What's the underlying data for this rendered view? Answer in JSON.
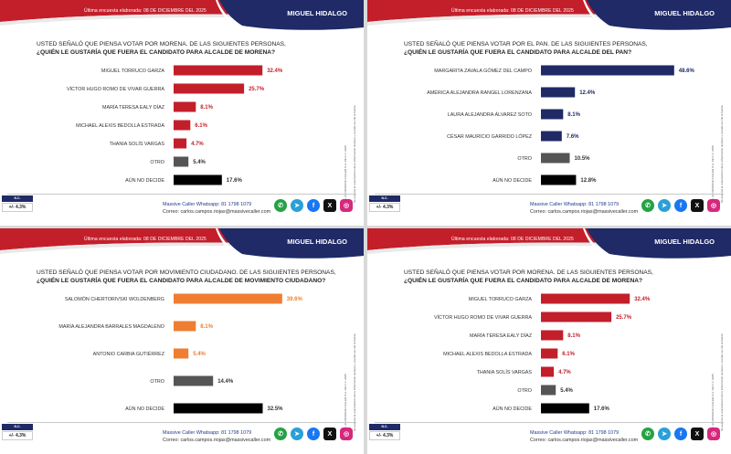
{
  "header": {
    "survey_date": "Última encuesta elaborada: 08 DE DICIEMBRE DEL 2025",
    "pollster": "MIGUEL HIDALGO",
    "brand_color": "#c21f2b",
    "navy_color": "#1f2a66"
  },
  "footer": {
    "box_top": "N.C.",
    "margin": "+/- 4.3%",
    "whatsapp": "Massive Caller Whatsapp: 81 1798 1079",
    "email": "Correo: carlos.campos.riojas@massivecaller.com",
    "social_icons": [
      "whatsapp-icon",
      "telegram-icon",
      "facebook-icon",
      "x-icon",
      "instagram-icon"
    ]
  },
  "side_notes": {
    "a": "S.A. (C) MASSIVE CALLER S.A. DE C.V. 2025",
    "b": "Se autoriza la reproducción de la información siempre y cuando se cite la fuente."
  },
  "panels": [
    {
      "question_line1": "USTED SEÑALÓ QUE PIENSA VOTAR POR MORENA. DE LAS SIGUIENTES PERSONAS,",
      "question_line2": "¿QUIÉN LE GUSTARÍA QUE FUERA EL CANDIDATO PARA ALCALDE DE MORENA?"
    },
    {
      "question_line1": "USTED SEÑALÓ QUE PIENSA VOTAR POR EL PAN. DE LAS SIGUIENTES PERSONAS,",
      "question_line2": "¿QUIÉN LE GUSTARÍA QUE FUERA EL CANDIDATO PARA ALCALDE DEL PAN?"
    },
    {
      "question_line1": "USTED SEÑALÓ QUE PIENSA VOTAR POR MOVIMIENTO CIUDADANO. DE LAS SIGUIENTES PERSONAS,",
      "question_line2": "¿QUIÉN LE GUSTARÍA QUE FUERA EL CANDIDATO PARA ALCALDE DE MOVIMIENTO CIUDADANO?"
    },
    {
      "question_line1": "USTED SEÑALÓ QUE PIENSA VOTAR POR MORENA. DE LAS SIGUIENTES PERSONAS,",
      "question_line2": "¿QUIÉN LE GUSTARÍA QUE FUERA EL CANDIDATO PARA ALCALDE DE MORENA?"
    }
  ],
  "chart_data": [
    {
      "type": "bar",
      "orientation": "horizontal",
      "categories": [
        "MIGUEL TORRUCO GARZA",
        "VÍCTOR HUGO ROMO DE VIVAR GUERRA",
        "MARÍA TERESA EALY DÍAZ",
        "MICHAEL ALEXIS BEDOLLA ESTRADA",
        "THANIA SOLÍS VARGAS",
        "OTRO",
        "AÚN NO DECIDE"
      ],
      "values": [
        32.4,
        25.7,
        8.1,
        6.1,
        4.7,
        5.4,
        17.6
      ],
      "labels": [
        "32.4%",
        "25.7%",
        "8.1%",
        "6.1%",
        "4.7%",
        "5.4%",
        "17.6%"
      ],
      "colors": [
        "#c21f2b",
        "#c21f2b",
        "#c21f2b",
        "#c21f2b",
        "#c21f2b",
        "#555555",
        "#000000"
      ],
      "label_colors": [
        "#c21f2b",
        "#c21f2b",
        "#c21f2b",
        "#c21f2b",
        "#c21f2b",
        "#333333",
        "#333333"
      ],
      "xlim": [
        0,
        50
      ]
    },
    {
      "type": "bar",
      "orientation": "horizontal",
      "categories": [
        "MARGARITA ZAVALA GÓMEZ DEL CAMPO",
        "AMÉRICA ALEJANDRA RANGEL LORENZANA",
        "LAURA ALEJANDRA ÁLVAREZ SOTO",
        "CÉSAR MAURICIO GARRIDO LÓPEZ",
        "OTRO",
        "AÚN NO DECIDE"
      ],
      "values": [
        48.6,
        12.4,
        8.1,
        7.6,
        10.5,
        12.8
      ],
      "labels": [
        "48.6%",
        "12.4%",
        "8.1%",
        "7.6%",
        "10.5%",
        "12.8%"
      ],
      "colors": [
        "#1f2a66",
        "#1f2a66",
        "#1f2a66",
        "#1f2a66",
        "#555555",
        "#000000"
      ],
      "label_colors": [
        "#1f2a66",
        "#1f2a66",
        "#1f2a66",
        "#1f2a66",
        "#333333",
        "#333333"
      ],
      "xlim": [
        0,
        50
      ]
    },
    {
      "type": "bar",
      "orientation": "horizontal",
      "categories": [
        "SALOMÓN CHERTORIVSKI WOLDENBERG",
        "MARÍA ALEJANDRA BARRALES MAGDALENO",
        "ANTONIO CARBIA GUTIÉRREZ",
        "OTRO",
        "AÚN NO DECIDE"
      ],
      "values": [
        39.6,
        8.1,
        5.4,
        14.4,
        32.5
      ],
      "labels": [
        "39.6%",
        "8.1%",
        "5.4%",
        "14.4%",
        "32.5%"
      ],
      "colors": [
        "#ef7d32",
        "#ef7d32",
        "#ef7d32",
        "#555555",
        "#000000"
      ],
      "label_colors": [
        "#ef7d32",
        "#ef7d32",
        "#ef7d32",
        "#333333",
        "#333333"
      ],
      "xlim": [
        0,
        50
      ]
    },
    {
      "type": "bar",
      "orientation": "horizontal",
      "categories": [
        "MIGUEL TORRUCO GARZA",
        "VÍCTOR HUGO ROMO DE VIVAR GUERRA",
        "MARÍA TERESA EALY DÍAZ",
        "MICHAEL ALEXIS BEDOLLA ESTRADA",
        "THANIA SOLÍS VARGAS",
        "OTRO",
        "AÚN NO DECIDE"
      ],
      "values": [
        32.4,
        25.7,
        8.1,
        6.1,
        4.7,
        5.4,
        17.6
      ],
      "labels": [
        "32.4%",
        "25.7%",
        "8.1%",
        "6.1%",
        "4.7%",
        "5.4%",
        "17.6%"
      ],
      "colors": [
        "#c21f2b",
        "#c21f2b",
        "#c21f2b",
        "#c21f2b",
        "#c21f2b",
        "#555555",
        "#000000"
      ],
      "label_colors": [
        "#c21f2b",
        "#c21f2b",
        "#c21f2b",
        "#c21f2b",
        "#c21f2b",
        "#333333",
        "#333333"
      ],
      "xlim": [
        0,
        50
      ]
    }
  ]
}
